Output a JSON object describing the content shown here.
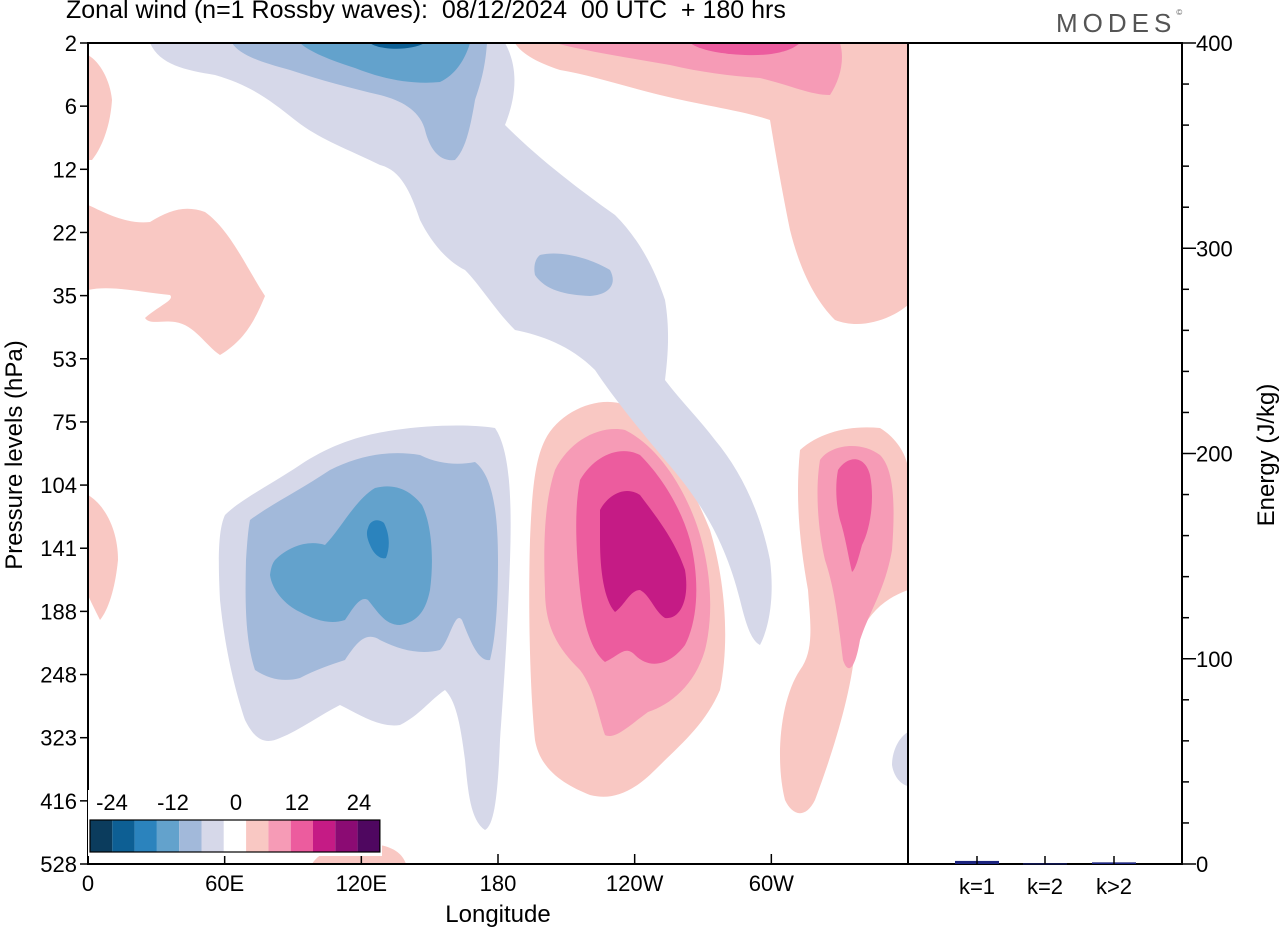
{
  "header": {
    "title": "Zonal wind (n=1 Rossby waves):  08/12/2024  00 UTC  + 180 hrs",
    "brand": "MODES",
    "brand_mark": "©"
  },
  "chart_data": [
    {
      "type": "heatmap",
      "title": "Zonal wind (n=1 Rossby waves):  08/12/2024  00 UTC  + 180 hrs",
      "xlabel": "Longitude",
      "ylabel": "Pressure levels (hPa)",
      "x_ticks": [
        "0",
        "60E",
        "120E",
        "180",
        "120W",
        "60W"
      ],
      "y_ticks": [
        "2",
        "6",
        "12",
        "22",
        "35",
        "53",
        "75",
        "104",
        "141",
        "188",
        "248",
        "323",
        "416",
        "528"
      ],
      "colorbar": {
        "tick_labels": [
          "-24",
          "-12",
          "0",
          "12",
          "24"
        ],
        "colors": [
          "#0b3c5d",
          "#0d5f94",
          "#2b83bd",
          "#63a2cc",
          "#a2b9da",
          "#d6d8e9",
          "#ffffff",
          "#f9c8c3",
          "#f69bb6",
          "#ec5c9e",
          "#c51b85",
          "#8b0b73",
          "#4f0760"
        ]
      },
      "features": [
        {
          "sign": "negative",
          "level": -16,
          "lon": 127,
          "pressure": 141,
          "label": "lower-troposphere easterly core"
        },
        {
          "sign": "negative",
          "level": -12,
          "lon": 115,
          "pressure": 2,
          "label": "upper stratospheric easterly maximum"
        },
        {
          "sign": "positive",
          "level": 20,
          "lon": -120,
          "pressure": 141,
          "label": "westerly core"
        },
        {
          "sign": "positive",
          "level": 12,
          "lon": -30,
          "pressure": 120,
          "label": "secondary westerly maximum"
        },
        {
          "sign": "positive",
          "level": 8,
          "lon": -75,
          "pressure": 2,
          "label": "upper stratospheric westerly"
        }
      ]
    },
    {
      "type": "bar",
      "categories": [
        "k=1",
        "k=2",
        "k>2"
      ],
      "values": [
        1.5,
        0.3,
        0.8
      ],
      "ylabel": "Energy (J/kg)",
      "ylim": [
        0,
        400
      ],
      "y_ticks": [
        "0",
        "100",
        "200",
        "300",
        "400"
      ],
      "bar_color": "#1a237e"
    }
  ]
}
